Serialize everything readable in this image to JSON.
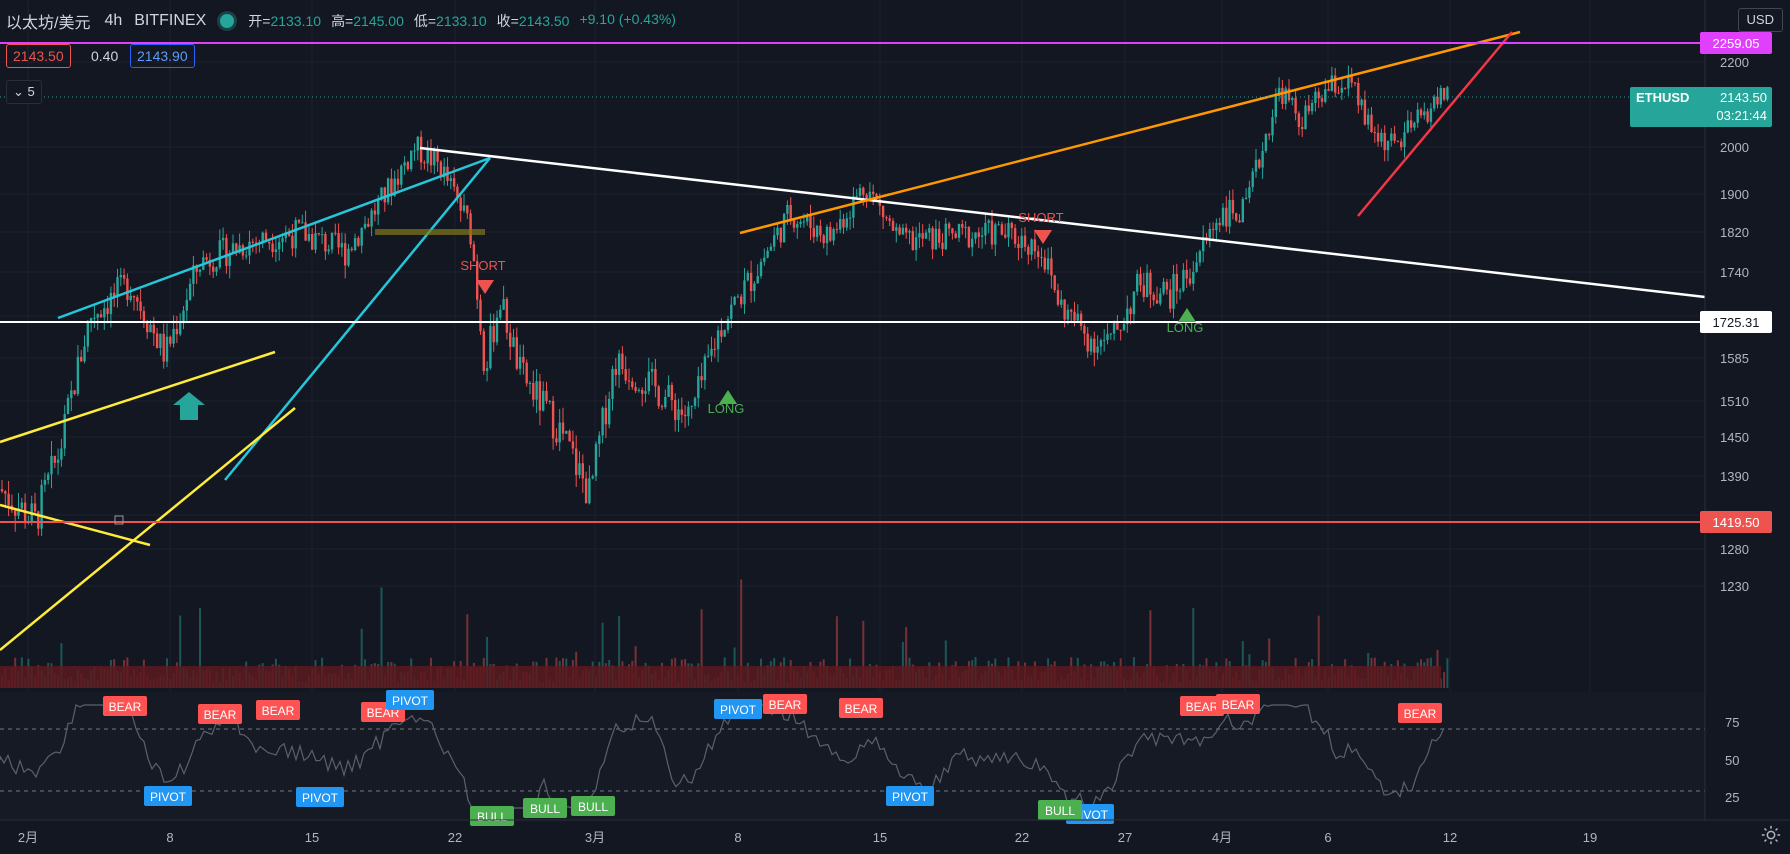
{
  "header": {
    "symbol": "以太坊/美元",
    "timeframe": "4h",
    "exchange": "BITFINEX",
    "open_label": "开=",
    "open": "2133.10",
    "high_label": "高=",
    "high": "2145.00",
    "low_label": "低=",
    "low": "2133.10",
    "close_label": "收=",
    "close": "2143.50",
    "change": "+9.10 (+0.43%)"
  },
  "quote": {
    "bid": "2143.50",
    "spread": "0.40",
    "ask": "2143.90"
  },
  "indicators_collapse": "5",
  "currency_button": "USD",
  "price_scale": [
    "2200",
    "2000",
    "1900",
    "1820",
    "1740",
    "1660",
    "1585",
    "1510",
    "1450",
    "1390",
    "1330",
    "1280",
    "1230"
  ],
  "osc_scale": [
    "75",
    "50",
    "25"
  ],
  "time_axis": [
    "2月",
    "8",
    "15",
    "22",
    "3月",
    "8",
    "15",
    "22",
    "27",
    "4月",
    "6",
    "12",
    "19"
  ],
  "price_tags": [
    {
      "name": "resistance-tag",
      "label": "2259.05",
      "color": "#e040fb"
    },
    {
      "name": "current-price-tag",
      "label": "2143.50",
      "color": "#26a69a"
    },
    {
      "name": "level-tag",
      "label": "1725.31",
      "color": "#ffffff"
    },
    {
      "name": "support-tag",
      "label": "1419.50",
      "color": "#ef5350"
    }
  ],
  "last_price_label": {
    "symbol": "ETHUSD",
    "price": "2143.50",
    "countdown": "03:21:44"
  },
  "signals": [
    {
      "text": "SHORT",
      "color": "#ef5350"
    },
    {
      "text": "SHORT",
      "color": "#ef5350"
    },
    {
      "text": "LONG",
      "color": "#4caf50"
    },
    {
      "text": "LONG",
      "color": "#4caf50"
    }
  ],
  "osc_labels": [
    {
      "text": "BEAR",
      "color": "#ff5252"
    },
    {
      "text": "BEAR",
      "color": "#ff5252"
    },
    {
      "text": "BEAR",
      "color": "#ff5252"
    },
    {
      "text": "BEAR",
      "color": "#ff5252"
    },
    {
      "text": "BEAR",
      "color": "#ff5252"
    },
    {
      "text": "BEAR",
      "color": "#ff5252"
    },
    {
      "text": "BEAR",
      "color": "#ff5252"
    },
    {
      "text": "BEAR",
      "color": "#ff5252"
    },
    {
      "text": "BEAR",
      "color": "#ff5252"
    },
    {
      "text": "PIVOT",
      "color": "#2196f3"
    },
    {
      "text": "PIVOT",
      "color": "#2196f3"
    },
    {
      "text": "PIVOT",
      "color": "#2196f3"
    },
    {
      "text": "PIVOT",
      "color": "#2196f3"
    },
    {
      "text": "PIVOT",
      "color": "#2196f3"
    },
    {
      "text": "PIVOT",
      "color": "#2196f3"
    },
    {
      "text": "BULL",
      "color": "#4caf50"
    },
    {
      "text": "BULL",
      "color": "#4caf50"
    },
    {
      "text": "BULL",
      "color": "#4caf50"
    },
    {
      "text": "BULL",
      "color": "#4caf50"
    }
  ],
  "colors": {
    "up": "#26a69a",
    "down": "#ef5350",
    "bg": "#131722",
    "grid": "#1e222d",
    "text": "#d1d4dc"
  }
}
